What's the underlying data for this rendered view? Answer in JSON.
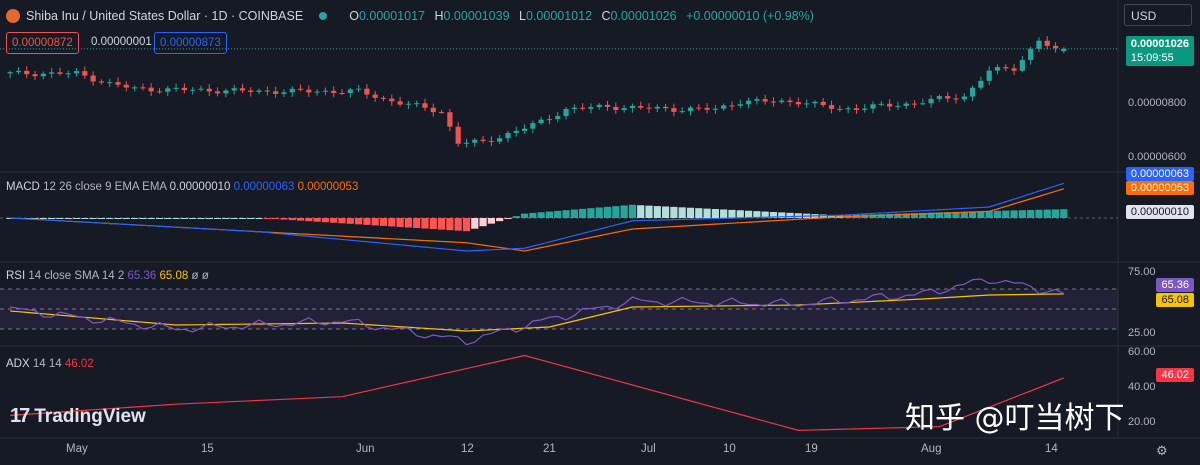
{
  "header": {
    "title": "Shiba Inu / United States Dollar · 1D · COINBASE",
    "open_label": "O",
    "open": "0.00001017",
    "high_label": "H",
    "high": "0.00001039",
    "low_label": "L",
    "low": "0.00001012",
    "close_label": "C",
    "close": "0.00001026",
    "change": "+0.00000010 (+0.98%)",
    "currency": "USD"
  },
  "order": {
    "sell": "0.00000872",
    "spread": "0.00000001",
    "buy": "0.00000873"
  },
  "price_axis": {
    "last_price": "0.00001026",
    "countdown": "15:09:55",
    "ticks": [
      "0.00000800",
      "0.00000600"
    ]
  },
  "macd": {
    "label": "MACD",
    "params": "12 26 close 9 EMA EMA",
    "hist_value": "0.00000010",
    "macd_value": "0.00000063",
    "signal_value": "0.00000053"
  },
  "rsi": {
    "label": "RSI",
    "params": "14 close SMA 14 2",
    "rsi_value": "65.36",
    "sma_value": "65.08",
    "extra1": "ø",
    "extra2": "ø",
    "ticks": [
      "75.00",
      "25.00"
    ]
  },
  "adx": {
    "label": "ADX",
    "params": "14 14",
    "value": "46.02",
    "ticks": [
      "60.00",
      "40.00",
      "20.00"
    ]
  },
  "x_axis": [
    "May",
    "15",
    "Jun",
    "12",
    "21",
    "Jul",
    "10",
    "19",
    "Aug",
    "14"
  ],
  "watermark": {
    "brand": "TradingView",
    "overlay_text": "知乎 @叮当树下"
  },
  "colors": {
    "up": "#26a69a",
    "down": "#ef5350",
    "macd": "#2962ff",
    "signal": "#ff6d00",
    "rsi": "#7e57c2",
    "rsi_ma": "#f5c400",
    "adx": "#f23645"
  },
  "chart_data": {
    "type": "candlestick",
    "anchors": [
      {
        "day": 0,
        "close": 9.3
      },
      {
        "day": 8,
        "close": 9.3
      },
      {
        "day": 12,
        "close": 8.9
      },
      {
        "day": 15,
        "close": 8.7
      },
      {
        "day": 30,
        "close": 8.6
      },
      {
        "day": 42,
        "close": 8.6
      },
      {
        "day": 45,
        "close": 8.3
      },
      {
        "day": 52,
        "close": 7.8
      },
      {
        "day": 54,
        "close": 6.6
      },
      {
        "day": 57,
        "close": 6.6
      },
      {
        "day": 64,
        "close": 7.4
      },
      {
        "day": 67,
        "close": 7.9
      },
      {
        "day": 72,
        "close": 8.0
      },
      {
        "day": 80,
        "close": 7.9
      },
      {
        "day": 85,
        "close": 7.9
      },
      {
        "day": 88,
        "close": 8.2
      },
      {
        "day": 95,
        "close": 8.2
      },
      {
        "day": 100,
        "close": 7.9
      },
      {
        "day": 108,
        "close": 8.1
      },
      {
        "day": 112,
        "close": 8.3
      },
      {
        "day": 115,
        "close": 8.4
      },
      {
        "day": 118,
        "close": 9.4
      },
      {
        "day": 121,
        "close": 9.5
      },
      {
        "day": 124,
        "close": 10.6
      },
      {
        "day": 126,
        "close": 10.2
      },
      {
        "day": 127,
        "close": 10.26
      }
    ],
    "macd_anchors": [
      {
        "day": 0,
        "macd": 0.0,
        "signal": 0.0
      },
      {
        "day": 30,
        "macd": -0.25,
        "signal": -0.25
      },
      {
        "day": 55,
        "macd": -0.6,
        "signal": -0.45
      },
      {
        "day": 62,
        "macd": -0.55,
        "signal": -0.6
      },
      {
        "day": 75,
        "macd": -0.05,
        "signal": -0.2
      },
      {
        "day": 100,
        "macd": 0.05,
        "signal": 0.02
      },
      {
        "day": 118,
        "macd": 0.2,
        "signal": 0.12
      },
      {
        "day": 127,
        "macd": 0.63,
        "signal": 0.53
      }
    ],
    "rsi_anchors": [
      {
        "day": 0,
        "rsi": 50,
        "ma": 48
      },
      {
        "day": 20,
        "rsi": 30,
        "ma": 34
      },
      {
        "day": 40,
        "rsi": 38,
        "ma": 36
      },
      {
        "day": 55,
        "rsi": 18,
        "ma": 28
      },
      {
        "day": 65,
        "rsi": 40,
        "ma": 32
      },
      {
        "day": 75,
        "rsi": 58,
        "ma": 52
      },
      {
        "day": 95,
        "rsi": 55,
        "ma": 54
      },
      {
        "day": 110,
        "rsi": 65,
        "ma": 60
      },
      {
        "day": 118,
        "rsi": 80,
        "ma": 64
      },
      {
        "day": 127,
        "rsi": 65.36,
        "ma": 65.08
      }
    ],
    "adx_anchors": [
      {
        "day": 0,
        "adx": 26
      },
      {
        "day": 20,
        "adx": 32
      },
      {
        "day": 40,
        "adx": 36
      },
      {
        "day": 62,
        "adx": 58
      },
      {
        "day": 95,
        "adx": 18
      },
      {
        "day": 112,
        "adx": 20
      },
      {
        "day": 127,
        "adx": 46.02
      }
    ],
    "days": 128,
    "price_range": [
      5.6,
      11.0
    ],
    "price_unit": "1e-6 USD"
  }
}
